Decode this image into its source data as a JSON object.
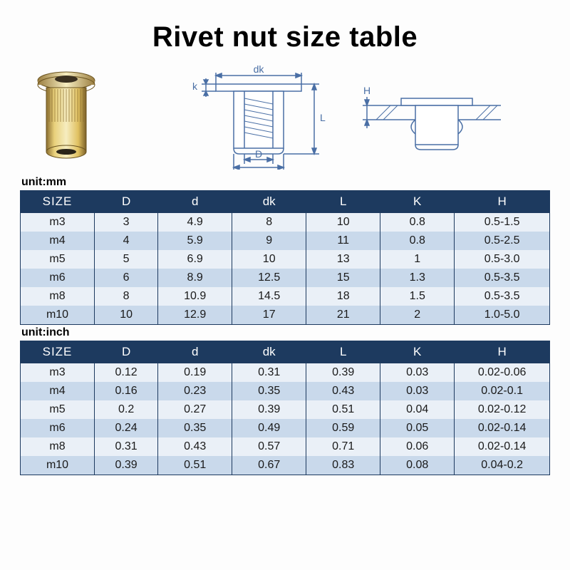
{
  "title": "Rivet nut size table",
  "unit_mm_label": "unit:mm",
  "unit_inch_label": "unit:inch",
  "colors": {
    "header_bg": "#1d3a5f",
    "header_text": "#ffffff",
    "row_even": "#eaf0f7",
    "row_odd": "#c9d9eb",
    "border": "#1d3a5f",
    "diagram_line": "#4a6fa5",
    "rivet_body": "#d4b56a",
    "rivet_shadow": "#a88c3f",
    "rivet_highlight": "#f0e0a0"
  },
  "diagram_labels": {
    "dk": "dk",
    "k": "k",
    "L": "L",
    "D": "D",
    "d": "d",
    "H": "H"
  },
  "table_mm": {
    "columns": [
      "SIZE",
      "D",
      "d",
      "dk",
      "L",
      "K",
      "H"
    ],
    "rows": [
      [
        "m3",
        "3",
        "4.9",
        "8",
        "10",
        "0.8",
        "0.5-1.5"
      ],
      [
        "m4",
        "4",
        "5.9",
        "9",
        "11",
        "0.8",
        "0.5-2.5"
      ],
      [
        "m5",
        "5",
        "6.9",
        "10",
        "13",
        "1",
        "0.5-3.0"
      ],
      [
        "m6",
        "6",
        "8.9",
        "12.5",
        "15",
        "1.3",
        "0.5-3.5"
      ],
      [
        "m8",
        "8",
        "10.9",
        "14.5",
        "18",
        "1.5",
        "0.5-3.5"
      ],
      [
        "m10",
        "10",
        "12.9",
        "17",
        "21",
        "2",
        "1.0-5.0"
      ]
    ]
  },
  "table_inch": {
    "columns": [
      "SIZE",
      "D",
      "d",
      "dk",
      "L",
      "K",
      "H"
    ],
    "rows": [
      [
        "m3",
        "0.12",
        "0.19",
        "0.31",
        "0.39",
        "0.03",
        "0.02-0.06"
      ],
      [
        "m4",
        "0.16",
        "0.23",
        "0.35",
        "0.43",
        "0.03",
        "0.02-0.1"
      ],
      [
        "m5",
        "0.2",
        "0.27",
        "0.39",
        "0.51",
        "0.04",
        "0.02-0.12"
      ],
      [
        "m6",
        "0.24",
        "0.35",
        "0.49",
        "0.59",
        "0.05",
        "0.02-0.14"
      ],
      [
        "m8",
        "0.31",
        "0.43",
        "0.57",
        "0.71",
        "0.06",
        "0.02-0.14"
      ],
      [
        "m10",
        "0.39",
        "0.51",
        "0.67",
        "0.83",
        "0.08",
        "0.04-0.2"
      ]
    ]
  }
}
